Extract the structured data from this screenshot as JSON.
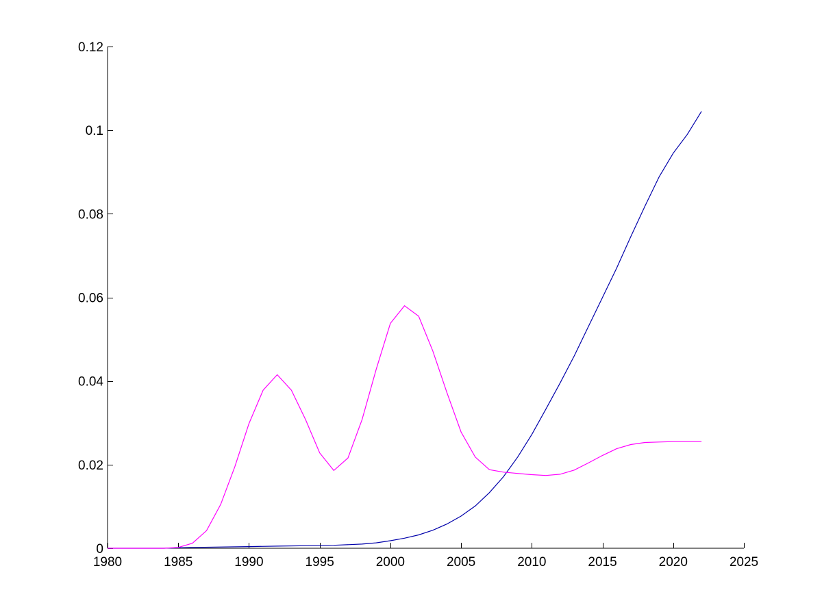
{
  "chart_data": {
    "type": "line",
    "title": "",
    "xlabel": "",
    "ylabel": "",
    "xlim": [
      1980,
      2025
    ],
    "ylim": [
      0,
      0.12
    ],
    "xticks": [
      1980,
      1985,
      1990,
      1995,
      2000,
      2005,
      2010,
      2015,
      2020,
      2025
    ],
    "xtick_labels": [
      "1980",
      "1985",
      "1990",
      "1995",
      "2000",
      "2005",
      "2010",
      "2015",
      "2020",
      "2025"
    ],
    "yticks": [
      0,
      0.02,
      0.04,
      0.06,
      0.08,
      0.1,
      0.12
    ],
    "ytick_labels": [
      "0",
      "0.02",
      "0.04",
      "0.06",
      "0.08",
      "0.1",
      "0.12"
    ],
    "grid": false,
    "legend": "none",
    "series": [
      {
        "color": "#0000aa",
        "x": [
          1980,
          1982,
          1984,
          1985,
          1986,
          1988,
          1990,
          1992,
          1994,
          1996,
          1998,
          1999,
          2000,
          2001,
          2002,
          2003,
          2004,
          2005,
          2006,
          2007,
          2008,
          2009,
          2010,
          2011,
          2012,
          2013,
          2014,
          2015,
          2016,
          2017,
          2018,
          2019,
          2020,
          2021,
          2022
        ],
        "y": [
          0,
          0,
          0,
          0.0001,
          0.0002,
          0.0003,
          0.0004,
          0.0005,
          0.0006,
          0.0007,
          0.001,
          0.0013,
          0.0018,
          0.0024,
          0.0032,
          0.0043,
          0.0058,
          0.0077,
          0.0101,
          0.0133,
          0.0171,
          0.0218,
          0.0272,
          0.0333,
          0.0395,
          0.046,
          0.053,
          0.06,
          0.067,
          0.0745,
          0.0818,
          0.0888,
          0.0945,
          0.099,
          0.1045
        ]
      },
      {
        "color": "#ff00ff",
        "x": [
          1980,
          1982,
          1984,
          1985,
          1986,
          1987,
          1988,
          1989,
          1990,
          1991,
          1992,
          1993,
          1994,
          1995,
          1996,
          1997,
          1998,
          1999,
          2000,
          2001,
          2002,
          2003,
          2004,
          2005,
          2006,
          2007,
          2008,
          2009,
          2010,
          2011,
          2012,
          2013,
          2014,
          2015,
          2016,
          2017,
          2018,
          2019,
          2020,
          2021,
          2022
        ],
        "y": [
          0,
          0,
          0,
          0.0002,
          0.0012,
          0.0042,
          0.0105,
          0.0195,
          0.0298,
          0.0378,
          0.0415,
          0.0378,
          0.0308,
          0.0228,
          0.0186,
          0.0216,
          0.0308,
          0.0428,
          0.0538,
          0.058,
          0.0555,
          0.0472,
          0.0372,
          0.0278,
          0.0218,
          0.0188,
          0.0182,
          0.0179,
          0.0176,
          0.0174,
          0.0177,
          0.0187,
          0.0204,
          0.0222,
          0.0238,
          0.0248,
          0.0253,
          0.0254,
          0.0255,
          0.0255,
          0.0255
        ]
      }
    ]
  }
}
